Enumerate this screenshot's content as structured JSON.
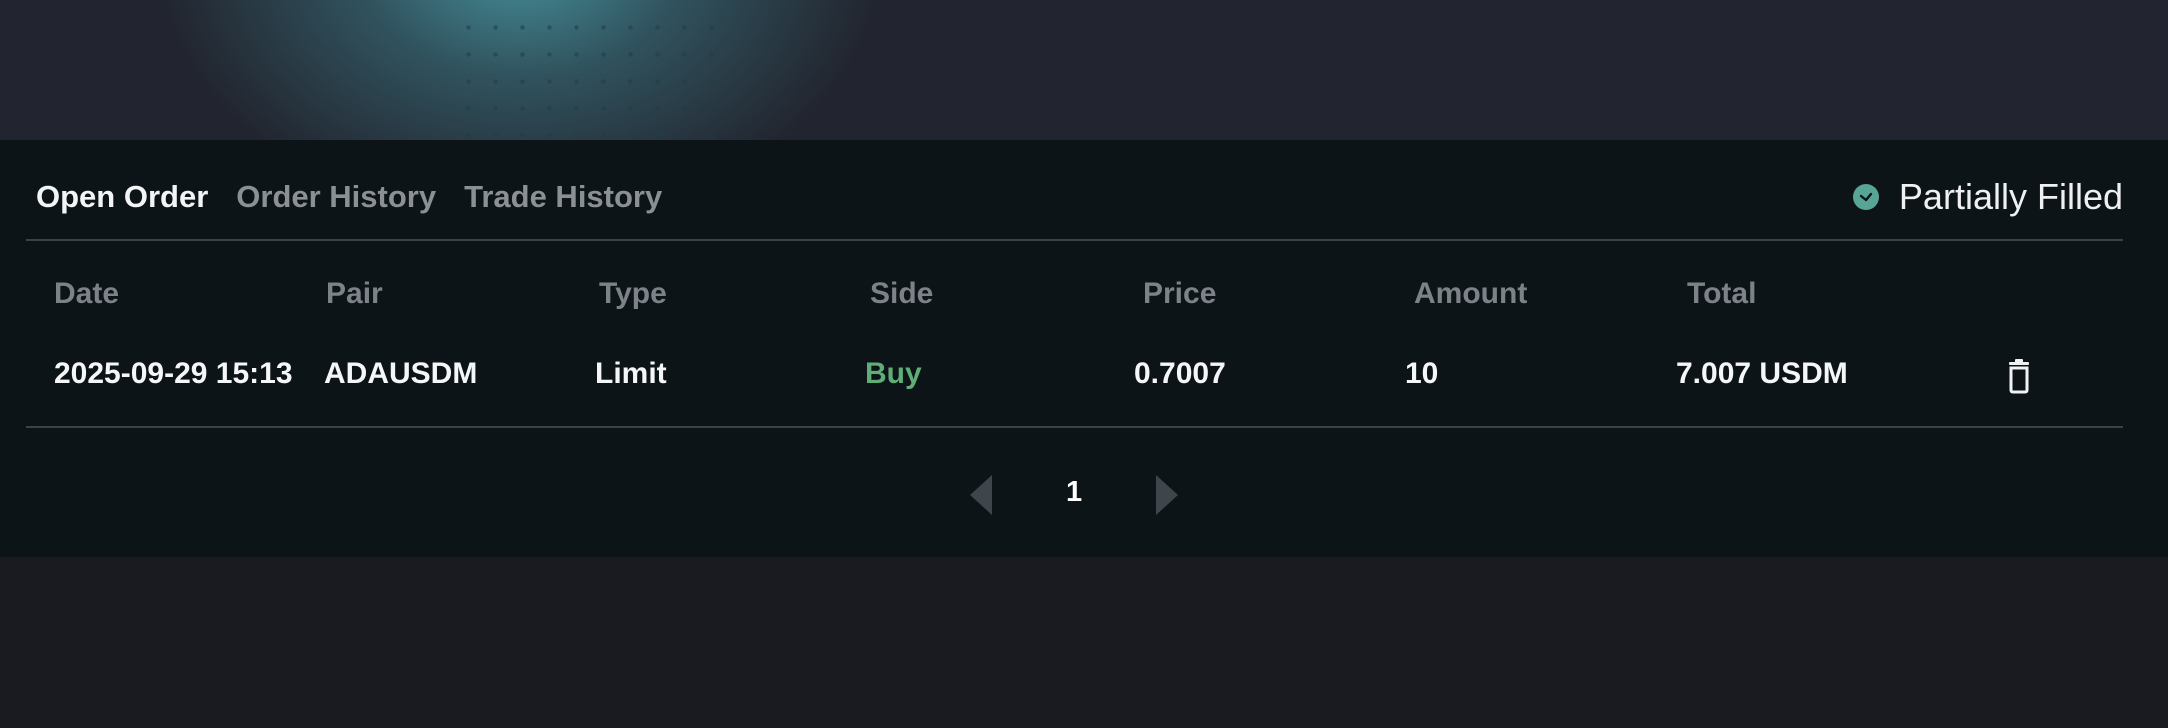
{
  "tabs": [
    {
      "label": "Open Order",
      "active": true
    },
    {
      "label": "Order History",
      "active": false
    },
    {
      "label": "Trade History",
      "active": false
    }
  ],
  "filter": {
    "label": "Partially Filled",
    "checked": true,
    "icon": "check-circle-icon"
  },
  "table": {
    "headers": [
      "Date",
      "Pair",
      "Type",
      "Side",
      "Price",
      "Amount",
      "Total"
    ],
    "rows": [
      {
        "date": "2025-09-29 15:13",
        "pair": "ADAUSDM",
        "type": "Limit",
        "side": "Buy",
        "price": "0.7007",
        "amount": "10",
        "total": "7.007 USDM",
        "action_icon": "trash-icon"
      }
    ]
  },
  "pagination": {
    "current_page": "1",
    "prev_icon": "chevron-left-icon",
    "next_icon": "chevron-right-icon"
  },
  "colors": {
    "buy": "#5fae78",
    "accent": "#58a596",
    "panel_bg": "#0d1418",
    "page_bg": "#1a1b20"
  }
}
